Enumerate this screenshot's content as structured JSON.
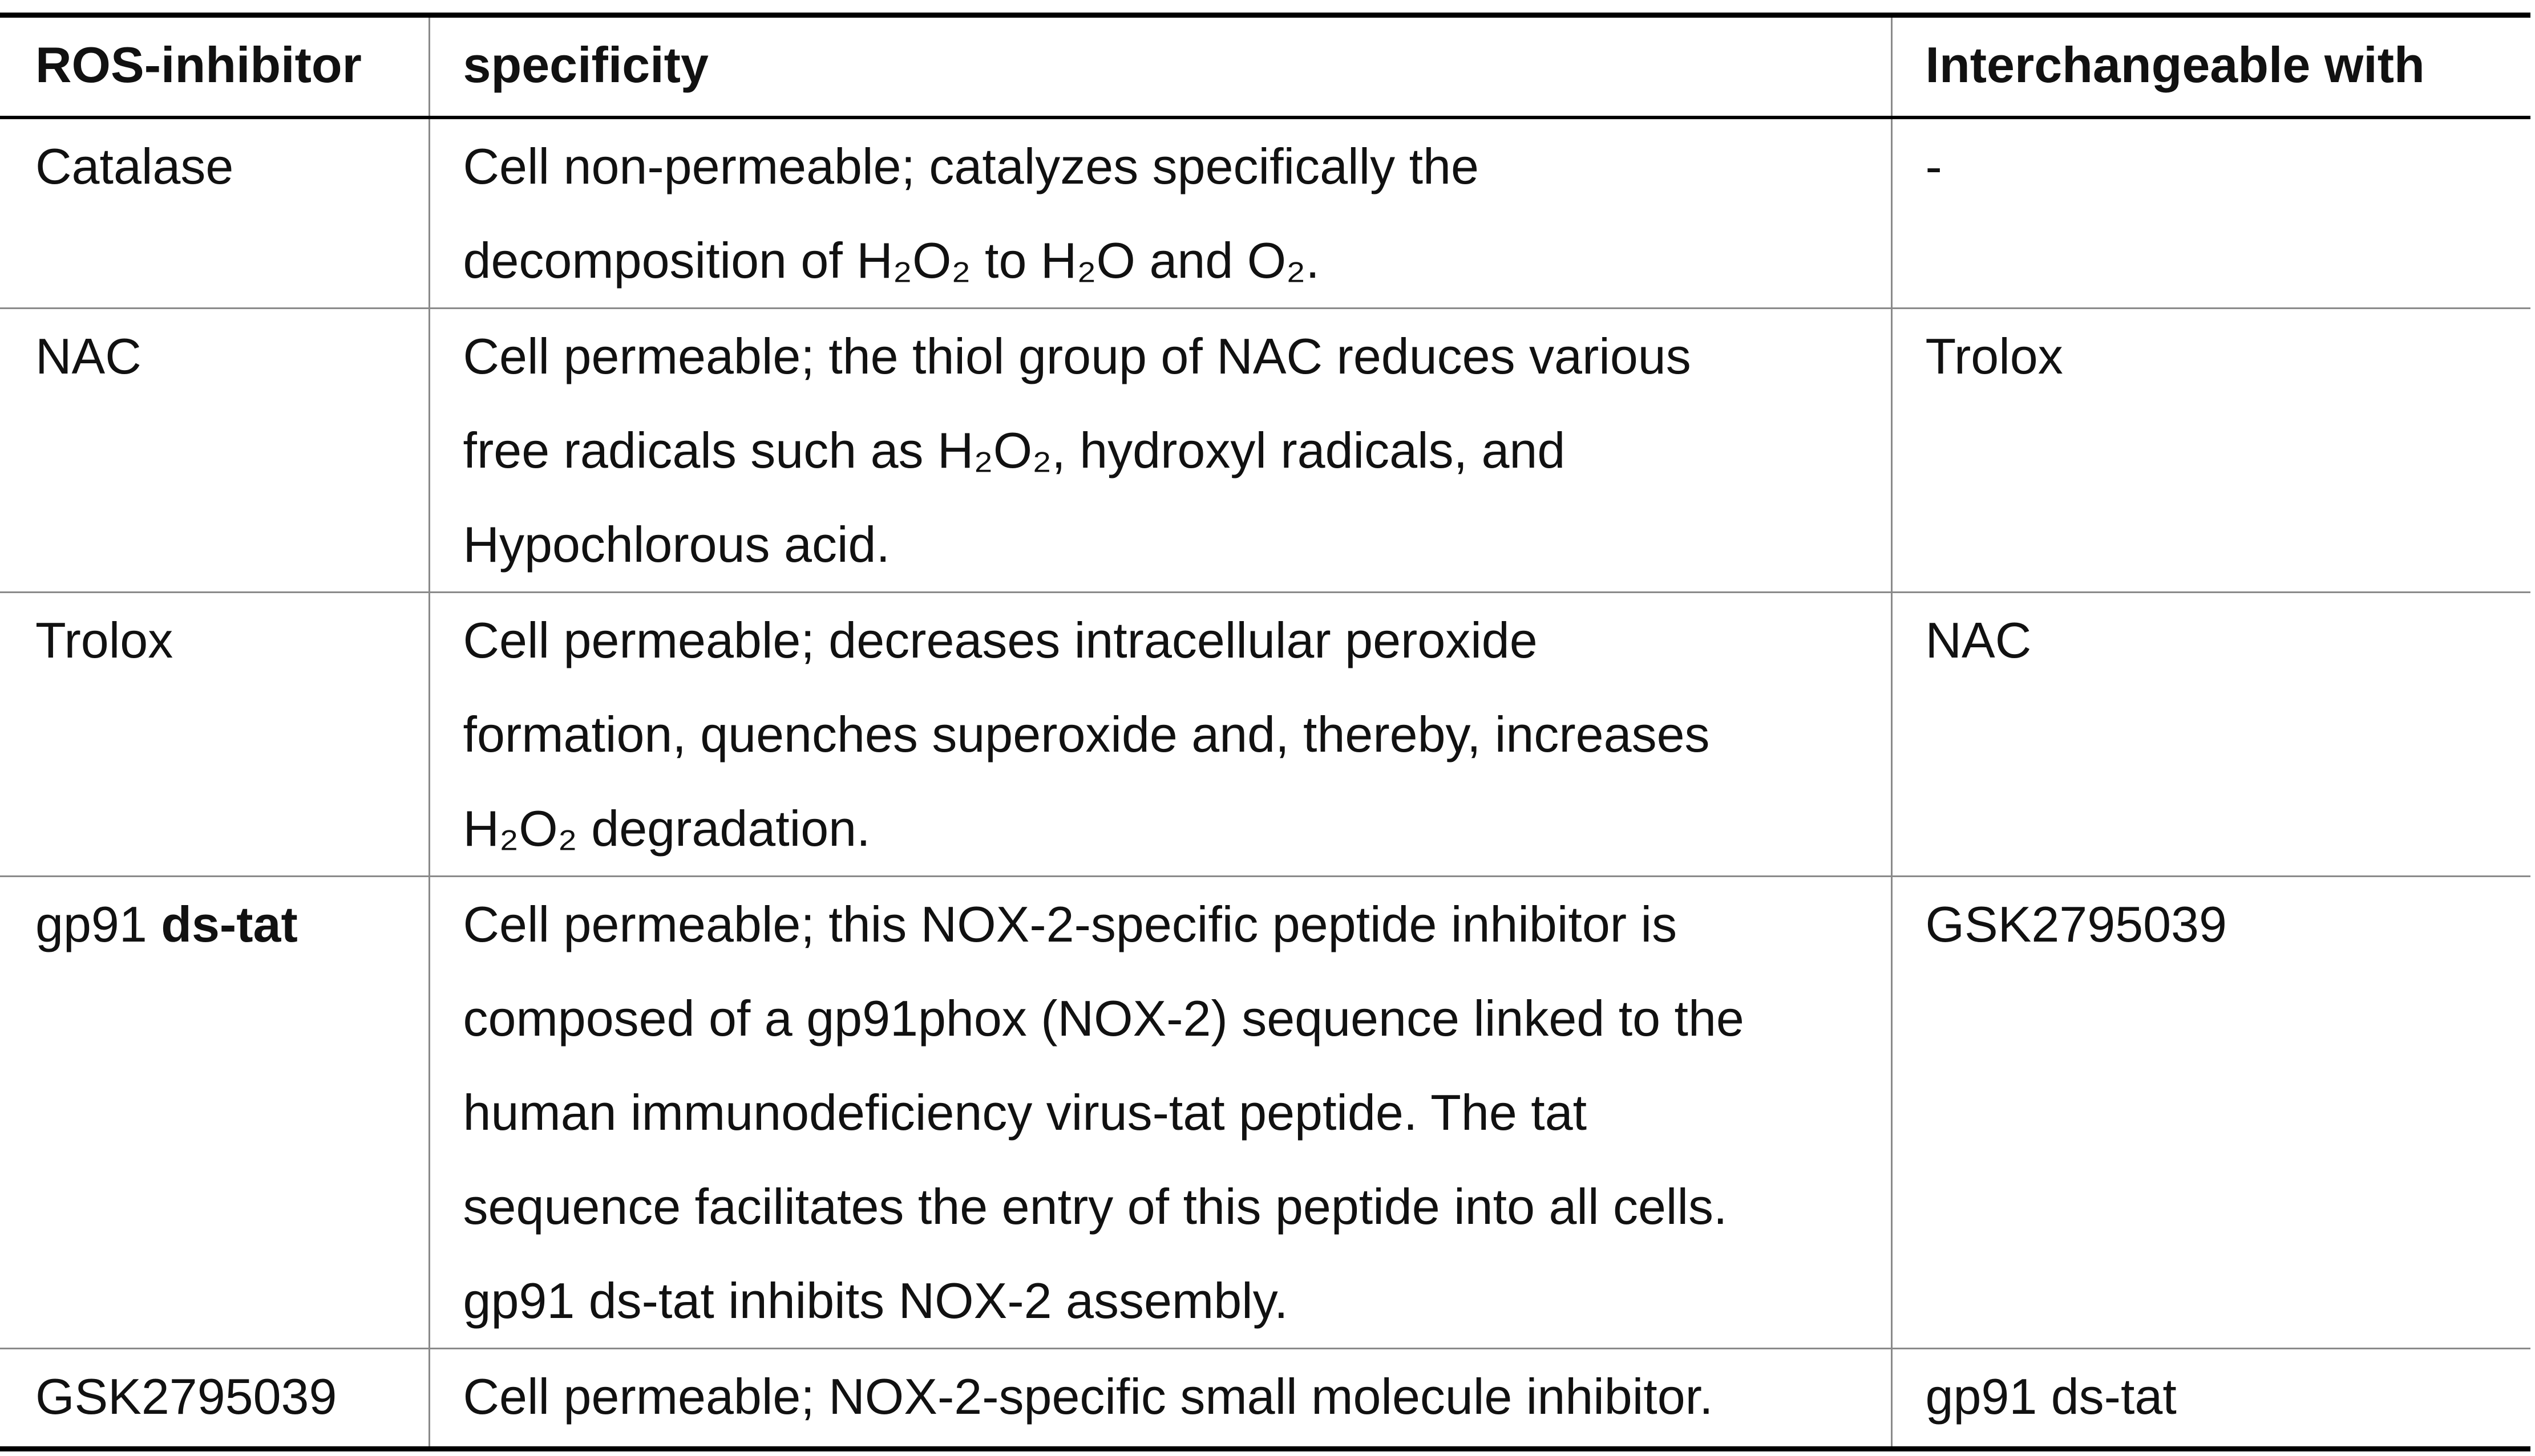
{
  "table": {
    "headers": [
      "ROS-inhibitor",
      "specificity",
      "Interchangeable with"
    ],
    "rows": [
      {
        "inhibitor": [
          "Catalase"
        ],
        "specificity": [
          "Cell non-permeable; catalyzes specifically the",
          "decomposition of H₂O₂ to H₂O and O₂."
        ],
        "interchangeable": "-"
      },
      {
        "inhibitor": [
          "NAC"
        ],
        "specificity": [
          "Cell permeable; the thiol group of NAC reduces various",
          "free radicals such as H₂O₂, hydroxyl radicals, and",
          "Hypochlorous acid."
        ],
        "interchangeable": "Trolox"
      },
      {
        "inhibitor": [
          "Trolox"
        ],
        "specificity": [
          "Cell permeable; decreases intracellular peroxide",
          "formation, quenches superoxide and, thereby, increases",
          "H₂O₂ degradation."
        ],
        "interchangeable": "NAC"
      },
      {
        "inhibitor": [
          "gp91 ",
          "ds-tat"
        ],
        "specificity": [
          "Cell permeable; this NOX-2-specific peptide inhibitor is",
          "composed of a gp91phox (NOX-2) sequence linked to the",
          "human immunodeficiency virus-tat peptide. The tat",
          "sequence facilitates the entry of this peptide into all cells.",
          "gp91 ds-tat inhibits NOX-2 assembly."
        ],
        "interchangeable": "GSK2795039"
      },
      {
        "inhibitor": [
          "GSK2795039"
        ],
        "specificity": [
          "Cell permeable; NOX-2-specific small molecule inhibitor."
        ],
        "interchangeable": "gp91 ds-tat"
      }
    ]
  }
}
